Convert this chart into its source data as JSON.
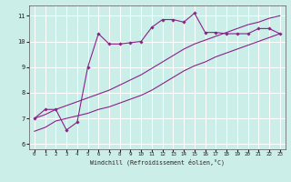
{
  "xlabel": "Windchill (Refroidissement éolien,°C)",
  "background_color": "#cceee8",
  "line_color": "#882288",
  "x_ticks": [
    0,
    1,
    2,
    3,
    4,
    5,
    6,
    7,
    8,
    9,
    10,
    11,
    12,
    13,
    14,
    15,
    16,
    17,
    18,
    19,
    20,
    21,
    22,
    23
  ],
  "y_ticks": [
    6,
    7,
    8,
    9,
    10,
    11
  ],
  "ylim": [
    5.8,
    11.4
  ],
  "xlim": [
    -0.5,
    23.5
  ],
  "series1_x": [
    0,
    1,
    2,
    3,
    4,
    5,
    6,
    7,
    8,
    9,
    10,
    11,
    12,
    13,
    14,
    15,
    16,
    17,
    18,
    19,
    20,
    21,
    22,
    23
  ],
  "series1_y": [
    7.0,
    7.35,
    7.35,
    6.55,
    6.85,
    9.0,
    10.3,
    9.9,
    9.9,
    9.95,
    10.0,
    10.55,
    10.85,
    10.85,
    10.75,
    11.1,
    10.35,
    10.35,
    10.3,
    10.3,
    10.3,
    10.5,
    10.5,
    10.3
  ],
  "series2_x": [
    0,
    1,
    2,
    3,
    4,
    5,
    6,
    7,
    8,
    9,
    10,
    11,
    12,
    13,
    14,
    15,
    16,
    17,
    18,
    19,
    20,
    21,
    22,
    23
  ],
  "series2_y": [
    6.5,
    6.65,
    6.9,
    7.0,
    7.1,
    7.2,
    7.35,
    7.45,
    7.6,
    7.75,
    7.9,
    8.1,
    8.35,
    8.6,
    8.85,
    9.05,
    9.2,
    9.4,
    9.55,
    9.7,
    9.85,
    10.0,
    10.15,
    10.3
  ],
  "series3_x": [
    0,
    1,
    2,
    3,
    4,
    5,
    6,
    7,
    8,
    9,
    10,
    11,
    12,
    13,
    14,
    15,
    16,
    17,
    18,
    19,
    20,
    21,
    22,
    23
  ],
  "series3_y": [
    7.0,
    7.15,
    7.35,
    7.5,
    7.65,
    7.8,
    7.95,
    8.1,
    8.3,
    8.5,
    8.7,
    8.95,
    9.2,
    9.45,
    9.7,
    9.9,
    10.05,
    10.2,
    10.35,
    10.5,
    10.65,
    10.75,
    10.9,
    11.0
  ]
}
